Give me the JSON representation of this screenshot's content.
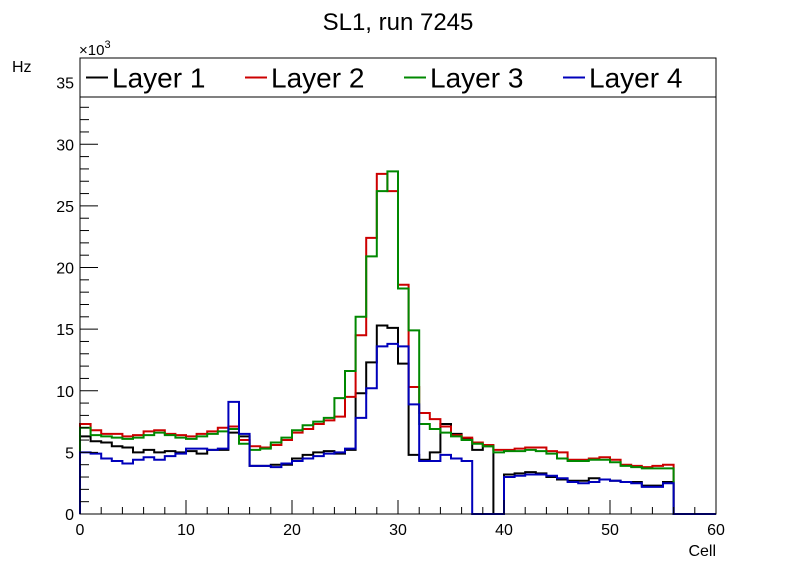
{
  "chart_data": {
    "type": "line",
    "title": "SL1, run 7245",
    "xlabel": "Cell",
    "ylabel": "Hz",
    "y_multiplier_label": "×10",
    "y_multiplier_exp": "3",
    "xlim": [
      0,
      60
    ],
    "ylim": [
      0,
      37
    ],
    "grid": false,
    "legend_position": "top",
    "x_ticks": [
      0,
      10,
      20,
      30,
      40,
      50,
      60
    ],
    "y_ticks": [
      0,
      5,
      10,
      15,
      20,
      25,
      30,
      35
    ],
    "bin_edges_start": 0,
    "bin_width": 1,
    "series": [
      {
        "name": "Layer 1",
        "color": "#000000",
        "values": [
          6.3,
          5.9,
          5.8,
          5.5,
          5.4,
          5.0,
          5.2,
          5.0,
          5.1,
          5.0,
          5.1,
          4.9,
          5.2,
          5.2,
          6.6,
          6.3,
          3.9,
          3.9,
          4.0,
          4.0,
          4.5,
          4.8,
          5.0,
          5.1,
          4.9,
          5.2,
          9.8,
          12.3,
          15.3,
          15.1,
          12.2,
          4.8,
          4.4,
          5.0,
          7.3,
          6.5,
          6.1,
          5.2,
          5.5,
          0,
          3.2,
          3.3,
          3.4,
          3.3,
          3.0,
          2.8,
          2.7,
          2.7,
          2.9,
          2.8,
          2.7,
          2.6,
          2.6,
          2.3,
          2.3,
          2.6
        ]
      },
      {
        "name": "Layer 2",
        "color": "#cc0000",
        "values": [
          7.3,
          6.8,
          6.5,
          6.5,
          6.3,
          6.4,
          6.7,
          6.8,
          6.5,
          6.4,
          6.3,
          6.5,
          6.7,
          7.0,
          7.1,
          6.0,
          5.5,
          5.4,
          5.6,
          6.0,
          6.6,
          6.9,
          7.3,
          7.6,
          7.9,
          9.5,
          14.5,
          22.4,
          27.6,
          26.2,
          18.6,
          10.3,
          8.2,
          7.7,
          7.1,
          6.4,
          6.2,
          5.8,
          5.6,
          5.2,
          5.2,
          5.3,
          5.4,
          5.4,
          5.1,
          5.0,
          4.4,
          4.4,
          4.5,
          4.6,
          4.4,
          4.0,
          3.9,
          3.8,
          3.9,
          4.0
        ]
      },
      {
        "name": "Layer 3",
        "color": "#008800",
        "values": [
          7.0,
          6.4,
          6.3,
          6.2,
          6.1,
          6.2,
          6.4,
          6.6,
          6.4,
          6.2,
          6.1,
          6.3,
          6.5,
          6.7,
          6.9,
          5.7,
          5.2,
          5.3,
          5.8,
          6.2,
          6.8,
          7.2,
          7.5,
          7.8,
          9.4,
          11.6,
          16.0,
          20.9,
          26.2,
          27.8,
          18.3,
          14.9,
          7.3,
          6.9,
          6.6,
          6.3,
          6.0,
          5.7,
          5.5,
          5.0,
          5.1,
          5.1,
          5.2,
          5.1,
          4.9,
          4.5,
          4.3,
          4.3,
          4.4,
          4.4,
          4.2,
          3.9,
          3.8,
          3.7,
          3.7,
          3.7
        ]
      },
      {
        "name": "Layer 4",
        "color": "#0000bb",
        "values": [
          5.0,
          4.9,
          4.5,
          4.3,
          4.1,
          4.4,
          4.6,
          4.4,
          4.7,
          4.9,
          5.3,
          5.3,
          5.2,
          5.3,
          9.1,
          6.5,
          3.9,
          3.9,
          3.8,
          4.1,
          4.3,
          4.5,
          4.7,
          4.9,
          5.0,
          5.3,
          7.8,
          10.2,
          13.6,
          13.8,
          13.6,
          8.9,
          4.3,
          4.3,
          4.8,
          4.5,
          4.3,
          0,
          0,
          0,
          3.0,
          3.1,
          3.2,
          3.2,
          3.1,
          2.9,
          2.6,
          2.5,
          2.6,
          2.8,
          2.7,
          2.6,
          2.5,
          2.2,
          2.2,
          2.5
        ]
      }
    ]
  }
}
